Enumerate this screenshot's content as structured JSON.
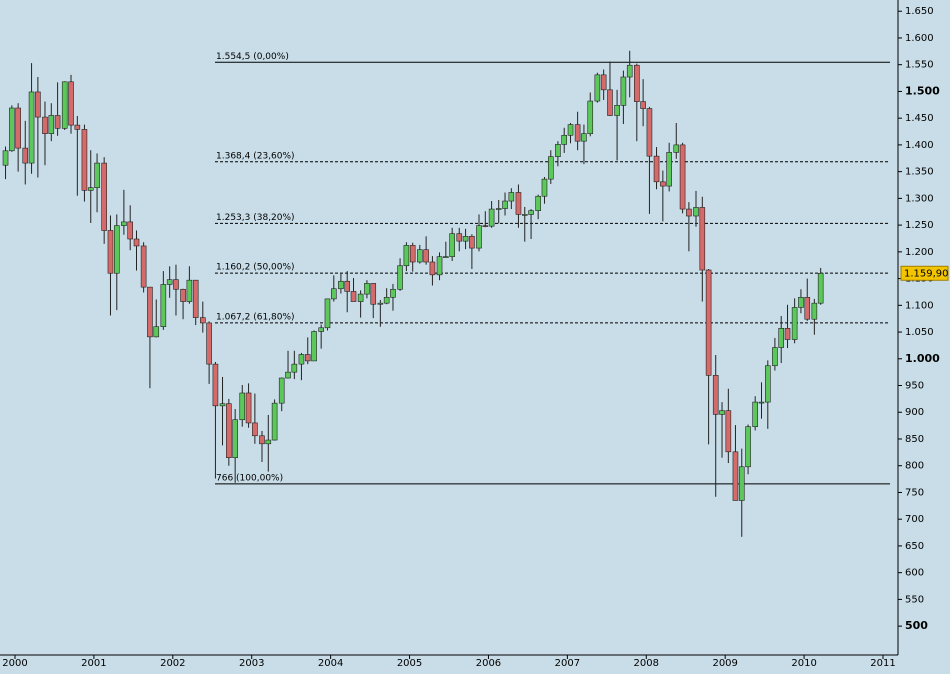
{
  "chart_data": {
    "type": "candlestick",
    "up_color": "#5cc85c",
    "down_color": "#d46a6a",
    "x": [
      1999.88,
      1999.96,
      2000.04,
      2000.13,
      2000.21,
      2000.29,
      2000.38,
      2000.46,
      2000.54,
      2000.63,
      2000.71,
      2000.79,
      2000.88,
      2000.96,
      2001.04,
      2001.13,
      2001.21,
      2001.29,
      2001.38,
      2001.46,
      2001.54,
      2001.63,
      2001.71,
      2001.79,
      2001.88,
      2001.96,
      2002.04,
      2002.13,
      2002.21,
      2002.29,
      2002.38,
      2002.46,
      2002.54,
      2002.63,
      2002.71,
      2002.79,
      2002.88,
      2002.96,
      2003.04,
      2003.13,
      2003.21,
      2003.29,
      2003.38,
      2003.46,
      2003.54,
      2003.63,
      2003.71,
      2003.79,
      2003.88,
      2003.96,
      2004.04,
      2004.13,
      2004.21,
      2004.29,
      2004.38,
      2004.46,
      2004.54,
      2004.63,
      2004.71,
      2004.79,
      2004.88,
      2004.96,
      2005.04,
      2005.13,
      2005.21,
      2005.29,
      2005.38,
      2005.46,
      2005.54,
      2005.63,
      2005.71,
      2005.79,
      2005.88,
      2005.96,
      2006.04,
      2006.13,
      2006.21,
      2006.29,
      2006.38,
      2006.46,
      2006.54,
      2006.63,
      2006.71,
      2006.79,
      2006.88,
      2006.96,
      2007.04,
      2007.13,
      2007.21,
      2007.29,
      2007.38,
      2007.46,
      2007.54,
      2007.63,
      2007.71,
      2007.79,
      2007.88,
      2007.96,
      2008.04,
      2008.13,
      2008.21,
      2008.29,
      2008.38,
      2008.46,
      2008.54,
      2008.63,
      2008.71,
      2008.79,
      2008.88,
      2008.96,
      2009.04,
      2009.13,
      2009.21,
      2009.29,
      2009.38,
      2009.46,
      2009.54,
      2009.63,
      2009.71,
      2009.79,
      2009.88,
      2009.96,
      2010.04,
      2010.13,
      2010.21
    ],
    "open": [
      1362,
      1389,
      1469,
      1394,
      1366,
      1499,
      1452,
      1421,
      1455,
      1431,
      1518,
      1437,
      1429,
      1315,
      1320,
      1366,
      1240,
      1160,
      1249,
      1256,
      1224,
      1211,
      1134,
      1041,
      1060,
      1139,
      1148,
      1130,
      1107,
      1147,
      1077,
      1067,
      990,
      912,
      916,
      815,
      886,
      936,
      880,
      856,
      841,
      848,
      917,
      964,
      975,
      990,
      1008,
      996,
      1051,
      1058,
      1112,
      1131,
      1145,
      1126,
      1107,
      1121,
      1141,
      1102,
      1104,
      1115,
      1130,
      1174,
      1212,
      1181,
      1204,
      1181,
      1157,
      1191,
      1191,
      1234,
      1220,
      1229,
      1207,
      1249,
      1248,
      1280,
      1281,
      1295,
      1311,
      1270,
      1270,
      1277,
      1304,
      1336,
      1378,
      1401,
      1418,
      1438,
      1407,
      1421,
      1482,
      1531,
      1503,
      1455,
      1474,
      1527,
      1549,
      1481,
      1468,
      1379,
      1331,
      1323,
      1386,
      1400,
      1280,
      1267,
      1283,
      1166,
      969,
      896,
      903,
      826,
      735,
      798,
      873,
      919,
      919,
      987,
      1021,
      1057,
      1036,
      1096,
      1115,
      1074,
      1104
    ],
    "high": [
      1397,
      1474,
      1478,
      1445,
      1553,
      1527,
      1481,
      1478,
      1517,
      1519,
      1531,
      1454,
      1438,
      1390,
      1384,
      1377,
      1268,
      1270,
      1316,
      1287,
      1240,
      1218,
      1134,
      1111,
      1164,
      1173,
      1176,
      1131,
      1173,
      1147,
      1107,
      1070,
      994,
      966,
      925,
      906,
      951,
      954,
      935,
      865,
      895,
      924,
      965,
      1015,
      1015,
      1011,
      1040,
      1053,
      1064,
      1112,
      1156,
      1159,
      1164,
      1151,
      1128,
      1147,
      1141,
      1110,
      1132,
      1140,
      1188,
      1218,
      1217,
      1213,
      1229,
      1192,
      1199,
      1219,
      1245,
      1245,
      1243,
      1233,
      1270,
      1276,
      1295,
      1297,
      1311,
      1319,
      1326,
      1284,
      1280,
      1307,
      1340,
      1390,
      1407,
      1432,
      1441,
      1462,
      1438,
      1498,
      1535,
      1541,
      1556,
      1503,
      1539,
      1576,
      1552,
      1523,
      1471,
      1396,
      1352,
      1404,
      1441,
      1404,
      1293,
      1314,
      1303,
      1168,
      1007,
      919,
      944,
      876,
      832,
      877,
      930,
      956,
      997,
      1039,
      1080,
      1101,
      1113,
      1130,
      1150,
      1112,
      1170
    ],
    "low": [
      1336,
      1387,
      1350,
      1326,
      1346,
      1339,
      1362,
      1407,
      1417,
      1428,
      1421,
      1305,
      1294,
      1254,
      1274,
      1215,
      1081,
      1091,
      1232,
      1203,
      1165,
      1124,
      945,
      1040,
      1054,
      1114,
      1081,
      1074,
      1103,
      1063,
      1049,
      953,
      776,
      838,
      800,
      768,
      873,
      871,
      841,
      807,
      789,
      847,
      902,
      963,
      962,
      960,
      990,
      996,
      1019,
      1053,
      1107,
      1122,
      1087,
      1107,
      1077,
      1113,
      1076,
      1060,
      1102,
      1090,
      1127,
      1164,
      1163,
      1178,
      1176,
      1137,
      1147,
      1189,
      1183,
      1201,
      1205,
      1168,
      1201,
      1246,
      1245,
      1253,
      1268,
      1280,
      1245,
      1219,
      1224,
      1261,
      1290,
      1327,
      1360,
      1385,
      1403,
      1390,
      1364,
      1416,
      1479,
      1484,
      1454,
      1371,
      1439,
      1489,
      1407,
      1435,
      1271,
      1317,
      1257,
      1313,
      1374,
      1272,
      1201,
      1247,
      1107,
      840,
      742,
      815,
      805,
      735,
      667,
      784,
      866,
      888,
      869,
      978,
      992,
      1020,
      1029,
      1085,
      1071,
      1045,
      1101
    ],
    "close": [
      1389,
      1469,
      1394,
      1366,
      1499,
      1452,
      1421,
      1455,
      1431,
      1518,
      1437,
      1429,
      1315,
      1320,
      1366,
      1240,
      1160,
      1249,
      1256,
      1224,
      1211,
      1134,
      1041,
      1060,
      1139,
      1148,
      1130,
      1107,
      1147,
      1077,
      1067,
      990,
      912,
      916,
      815,
      886,
      936,
      880,
      856,
      841,
      848,
      917,
      964,
      975,
      990,
      1008,
      996,
      1051,
      1058,
      1112,
      1131,
      1145,
      1126,
      1107,
      1121,
      1141,
      1102,
      1104,
      1115,
      1130,
      1174,
      1212,
      1181,
      1204,
      1181,
      1157,
      1191,
      1191,
      1234,
      1220,
      1229,
      1207,
      1249,
      1248,
      1280,
      1281,
      1295,
      1311,
      1270,
      1270,
      1277,
      1304,
      1336,
      1378,
      1401,
      1418,
      1438,
      1407,
      1421,
      1482,
      1531,
      1503,
      1455,
      1474,
      1527,
      1549,
      1481,
      1468,
      1379,
      1331,
      1323,
      1386,
      1400,
      1280,
      1267,
      1283,
      1166,
      969,
      896,
      903,
      826,
      735,
      798,
      873,
      919,
      919,
      987,
      1021,
      1057,
      1036,
      1096,
      1115,
      1074,
      1104,
      1159.9
    ],
    "xlim": [
      1999.81,
      2011.19
    ],
    "xticks": [
      2000,
      2001,
      2002,
      2003,
      2004,
      2005,
      2006,
      2007,
      2008,
      2009,
      2010,
      2011
    ],
    "ylim": [
      446,
      1671
    ],
    "yticks": [
      500,
      550,
      600,
      650,
      700,
      750,
      800,
      850,
      900,
      950,
      {
        "value": 1000,
        "label": "1.000"
      },
      {
        "value": 1050,
        "label": "1.050"
      },
      {
        "value": 1100,
        "label": "1.100"
      },
      {
        "value": 1150,
        "label": "1.150"
      },
      {
        "value": 1200,
        "label": "1.200"
      },
      {
        "value": 1250,
        "label": "1.250"
      },
      {
        "value": 1300,
        "label": "1.300"
      },
      {
        "value": 1350,
        "label": "1.350"
      },
      {
        "value": 1400,
        "label": "1.400"
      },
      {
        "value": 1450,
        "label": "1.450"
      },
      {
        "value": 1500,
        "label": "1.500"
      },
      {
        "value": 1550,
        "label": "1.550"
      },
      {
        "value": 1600,
        "label": "1.600"
      },
      {
        "value": 1650,
        "label": "1.650"
      }
    ],
    "levels": [
      {
        "value": 1554.5,
        "label": "1.554,5 (0,00%)",
        "style": "solid"
      },
      {
        "value": 1368.4,
        "label": "1.368,4 (23,60%)",
        "style": "dashed"
      },
      {
        "value": 1253.3,
        "label": "1.253,3 (38,20%)",
        "style": "dashed"
      },
      {
        "value": 1160.2,
        "label": "1.160,2 (50,00%)",
        "style": "dashed"
      },
      {
        "value": 1067.2,
        "label": "1.067,2 (61,80%)",
        "style": "dashed"
      },
      {
        "value": 766,
        "label": "766 (100,00%)",
        "style": "solid"
      }
    ],
    "last_price": {
      "value": 1159.9,
      "label": "1.159,90"
    }
  }
}
